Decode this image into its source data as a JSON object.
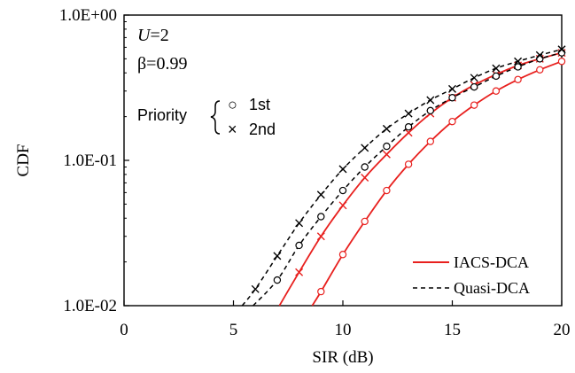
{
  "chart_data": {
    "type": "line",
    "xlabel": "SIR (dB)",
    "ylabel": "CDF",
    "xlim": [
      0,
      20
    ],
    "ylim": [
      0.01,
      1
    ],
    "yscale": "log",
    "grid": false,
    "x_ticks": [
      0,
      5,
      10,
      15,
      20
    ],
    "x_tick_labels": [
      "0",
      "5",
      "10",
      "15",
      "20"
    ],
    "y_ticks": [
      0.01,
      0.1,
      1
    ],
    "y_tick_labels": [
      "1.0E-02",
      "1.0E-01",
      "1.0E+00"
    ],
    "annotations": {
      "u_param": "U=2",
      "u_symbol": "U",
      "u_value": "=2",
      "beta_param": "β=0.99",
      "priority_label": "Priority",
      "marker_first": "○",
      "marker_first_label": "1st",
      "marker_second": "×",
      "marker_second_label": "2nd"
    },
    "legend": {
      "position": "bottom-right",
      "entries": [
        {
          "label": "IACS-DCA",
          "color": "#e8201e",
          "dash": "solid"
        },
        {
          "label": "Quasi-DCA",
          "color": "#000000",
          "dash": "dashed"
        }
      ]
    },
    "series": [
      {
        "name": "IACS-DCA",
        "priority": "1st",
        "marker": "circle",
        "color": "#e8201e",
        "dash": "solid",
        "x": [
          8.6,
          9,
          10,
          11,
          12,
          13,
          14,
          15,
          16,
          17,
          18,
          19,
          20
        ],
        "y": [
          0.01,
          0.0125,
          0.0225,
          0.038,
          0.062,
          0.094,
          0.135,
          0.185,
          0.24,
          0.3,
          0.36,
          0.42,
          0.48
        ],
        "markers_x": [
          9,
          10,
          11,
          12,
          13,
          14,
          15,
          16,
          17,
          18,
          19,
          20
        ]
      },
      {
        "name": "IACS-DCA",
        "priority": "2nd",
        "marker": "x",
        "color": "#e8201e",
        "dash": "solid",
        "x": [
          7.1,
          8,
          9,
          10,
          11,
          12,
          13,
          14,
          15,
          16,
          17,
          18,
          19,
          20
        ],
        "y": [
          0.01,
          0.017,
          0.03,
          0.049,
          0.076,
          0.11,
          0.155,
          0.21,
          0.27,
          0.33,
          0.39,
          0.45,
          0.5,
          0.55
        ],
        "markers_x": [
          8,
          9,
          10,
          11,
          12,
          13,
          14,
          15,
          16,
          17,
          18,
          19,
          20
        ]
      },
      {
        "name": "Quasi-DCA",
        "priority": "1st",
        "marker": "circle",
        "color": "#000000",
        "dash": "dashed",
        "x": [
          5.9,
          7,
          8,
          9,
          10,
          11,
          12,
          13,
          14,
          15,
          16,
          17,
          18,
          19,
          20
        ],
        "y": [
          0.01,
          0.015,
          0.026,
          0.041,
          0.062,
          0.09,
          0.125,
          0.17,
          0.22,
          0.27,
          0.32,
          0.38,
          0.44,
          0.5,
          0.55
        ],
        "markers_x": [
          7,
          8,
          9,
          10,
          11,
          12,
          13,
          14,
          15,
          16,
          17,
          18,
          19,
          20
        ]
      },
      {
        "name": "Quasi-DCA",
        "priority": "2nd",
        "marker": "x",
        "color": "#000000",
        "dash": "dashed",
        "x": [
          5.4,
          6,
          7,
          8,
          9,
          10,
          11,
          12,
          13,
          14,
          15,
          16,
          17,
          18,
          19,
          20
        ],
        "y": [
          0.01,
          0.013,
          0.022,
          0.037,
          0.058,
          0.087,
          0.122,
          0.165,
          0.21,
          0.26,
          0.31,
          0.37,
          0.43,
          0.48,
          0.53,
          0.58
        ],
        "markers_x": [
          6,
          7,
          8,
          9,
          10,
          11,
          12,
          13,
          14,
          15,
          16,
          17,
          18,
          19,
          20
        ]
      }
    ]
  }
}
